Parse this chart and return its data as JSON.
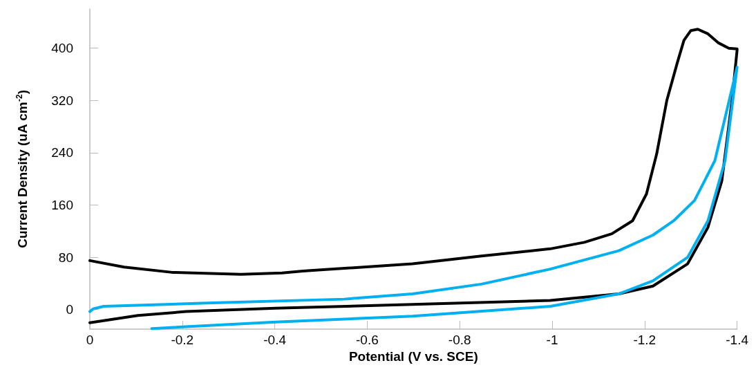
{
  "chart_data": {
    "type": "line",
    "xlabel": "Potential (V vs. SCE)",
    "ylabel": "Current Density (uA cm$^{-2}$)",
    "xlim": [
      0,
      -1.4
    ],
    "xticks": [
      0,
      -0.2,
      -0.4,
      -0.6,
      -0.8,
      -1,
      -1.2,
      -1.4
    ],
    "ylim": [
      -30,
      460
    ],
    "yticks": [
      0,
      80,
      160,
      240,
      320,
      400
    ],
    "grid": false,
    "marker": "none",
    "line_style": "solid",
    "series": [
      {
        "color": "#000000",
        "x": [
          0,
          -0.104,
          -0.208,
          -0.401,
          -0.698,
          -0.996,
          -1.144,
          -1.218,
          -1.293,
          -1.337,
          -1.367,
          -1.389,
          -1.4,
          -1.4,
          -1.382,
          -1.36,
          -1.337,
          -1.315,
          -1.3,
          -1.285,
          -1.27,
          -1.248,
          -1.226,
          -1.204,
          -1.174,
          -1.129,
          -1.07,
          -0.996,
          -0.847,
          -0.698,
          -0.505,
          -0.461,
          -0.416,
          -0.327,
          -0.178,
          -0.074,
          0
        ],
        "values": [
          -20,
          -9,
          -3,
          2,
          8,
          14,
          24,
          36,
          70,
          126,
          197,
          320,
          397,
          399,
          400,
          408,
          422,
          429,
          427,
          412,
          376,
          320,
          238,
          177,
          136,
          116,
          103,
          93,
          82,
          70,
          61,
          59,
          56,
          54,
          57,
          65,
          75
        ]
      },
      {
        "color": "#00b0f0",
        "x": [
          -0.134,
          -0.401,
          -0.698,
          -0.996,
          -1.144,
          -1.218,
          -1.293,
          -1.337,
          -1.374,
          -1.4,
          -1.352,
          -1.308,
          -1.263,
          -1.218,
          -1.144,
          -0.996,
          -0.847,
          -0.698,
          -0.55,
          -0.253,
          -0.03,
          -0.007,
          0
        ],
        "values": [
          -29,
          -19,
          -10,
          5,
          24,
          44,
          80,
          136,
          228,
          371,
          228,
          167,
          136,
          114,
          90,
          62,
          39,
          24,
          16,
          10,
          5,
          1,
          -3
        ]
      }
    ]
  }
}
